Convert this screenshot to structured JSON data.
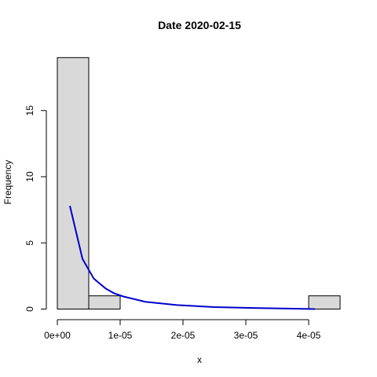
{
  "chart_data": {
    "type": "histogram",
    "title": "Date 2020-02-15",
    "xlabel": "x",
    "ylabel": "Frequency",
    "xlim": [
      0,
      4.5e-05
    ],
    "ylim": [
      0,
      19
    ],
    "bins": [
      {
        "x0": 0.0,
        "x1": 5e-06,
        "count": 19
      },
      {
        "x0": 5e-06,
        "x1": 1e-05,
        "count": 1
      },
      {
        "x0": 1e-05,
        "x1": 1.5e-05,
        "count": 0
      },
      {
        "x0": 1.5e-05,
        "x1": 2e-05,
        "count": 0
      },
      {
        "x0": 2e-05,
        "x1": 2.5e-05,
        "count": 0
      },
      {
        "x0": 2.5e-05,
        "x1": 3e-05,
        "count": 0
      },
      {
        "x0": 3e-05,
        "x1": 3.5e-05,
        "count": 0
      },
      {
        "x0": 3.5e-05,
        "x1": 4e-05,
        "count": 0
      },
      {
        "x0": 4e-05,
        "x1": 4.5e-05,
        "count": 1
      }
    ],
    "x_ticks": [
      {
        "value": 0,
        "label": "0e+00"
      },
      {
        "value": 1e-05,
        "label": "1e-05"
      },
      {
        "value": 2e-05,
        "label": "2e-05"
      },
      {
        "value": 3e-05,
        "label": "3e-05"
      },
      {
        "value": 4e-05,
        "label": "4e-05"
      }
    ],
    "y_ticks": [
      {
        "value": 0,
        "label": "0"
      },
      {
        "value": 5,
        "label": "5"
      },
      {
        "value": 10,
        "label": "10"
      },
      {
        "value": 15,
        "label": "15"
      }
    ],
    "curve": {
      "color": "#0000cc",
      "x": [
        2e-06,
        4e-06,
        5.8e-06,
        7.7e-06,
        9e-06,
        1.05e-05,
        1.4e-05,
        1.9e-05,
        2.5e-05,
        3.2e-05,
        4.1e-05
      ],
      "y": [
        7.8,
        3.8,
        2.3,
        1.55,
        1.2,
        0.95,
        0.55,
        0.3,
        0.15,
        0.08,
        0.0
      ]
    },
    "bar_fill": "#d9d9d9",
    "bar_stroke": "#000000",
    "grid": false,
    "legend": "none"
  }
}
